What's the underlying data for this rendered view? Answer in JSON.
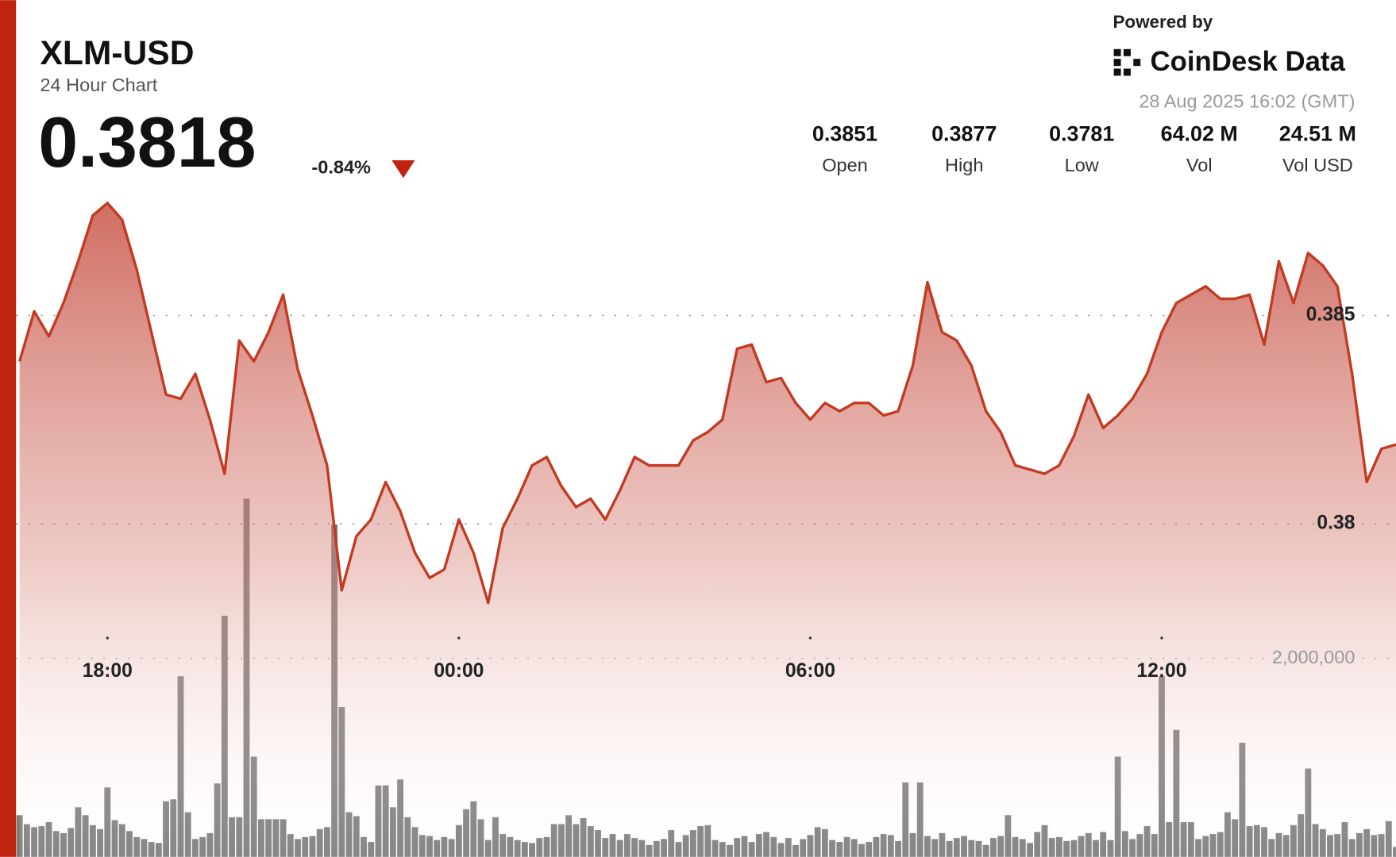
{
  "header": {
    "symbol": "XLM-USD",
    "subtitle": "24 Hour Chart",
    "price": "0.3818",
    "change": "-0.84%",
    "powered_by": "Powered by",
    "brand": "CoinDesk Data",
    "timestamp": "28 Aug 2025 16:02 (GMT)"
  },
  "stats": [
    {
      "value": "0.3851",
      "label": "Open"
    },
    {
      "value": "0.3877",
      "label": "High"
    },
    {
      "value": "0.3781",
      "label": "Low"
    },
    {
      "value": "64.02 M",
      "label": "Vol"
    },
    {
      "value": "24.51 M",
      "label": "Vol USD"
    }
  ],
  "chart_data": {
    "type": "line",
    "xlim": [
      0,
      94
    ],
    "xticks": [
      {
        "value": 6,
        "label": "18:00"
      },
      {
        "value": 30,
        "label": "00:00"
      },
      {
        "value": 54,
        "label": "06:00"
      },
      {
        "value": 78,
        "label": "12:00"
      }
    ],
    "ylim": [
      0.372,
      0.3883
    ],
    "yticks": [
      0.38,
      0.385
    ],
    "y2lim": [
      0,
      6840000
    ],
    "y2ticks": [
      {
        "value": 2000000,
        "label": "2,000,000"
      }
    ],
    "grid": true,
    "series": [
      {
        "type": "area",
        "color": "#c23a22",
        "values": [
          0.3839,
          0.3851,
          0.3845,
          0.3853,
          0.3863,
          0.3874,
          0.3877,
          0.3873,
          0.3861,
          0.3846,
          0.3831,
          0.383,
          0.3836,
          0.3825,
          0.3812,
          0.3844,
          0.3839,
          0.3846,
          0.3855,
          0.3837,
          0.3826,
          0.3814,
          0.3784,
          0.3797,
          0.3801,
          0.381,
          0.3803,
          0.3793,
          0.3787,
          0.3789,
          0.3801,
          0.3793,
          0.3781,
          0.3799,
          0.3806,
          0.3814,
          0.3816,
          0.3809,
          0.3804,
          0.3806,
          0.3801,
          0.3808,
          0.3816,
          0.3814,
          0.3814,
          0.3814,
          0.382,
          0.3822,
          0.3825,
          0.3842,
          0.3843,
          0.3834,
          0.3835,
          0.3829,
          0.3825,
          0.3829,
          0.3827,
          0.3829,
          0.3829,
          0.3826,
          0.3827,
          0.3838,
          0.3858,
          0.3846,
          0.3844,
          0.3838,
          0.3827,
          0.3822,
          0.3814,
          0.3813,
          0.3812,
          0.3814,
          0.3821,
          0.3831,
          0.3823,
          0.3826,
          0.383,
          0.3836,
          0.3846,
          0.3853,
          0.3855,
          0.3857,
          0.3854,
          0.3854,
          0.3855,
          0.3843,
          0.3863,
          0.3853,
          0.3865,
          0.3862,
          0.3857,
          0.3836,
          0.381,
          0.3818,
          0.3819
        ]
      },
      {
        "type": "bar",
        "axis": "y2",
        "color": "#6b6b6b",
        "values": [
          420000,
          330000,
          300000,
          310000,
          350000,
          260000,
          240000,
          290000,
          500000,
          420000,
          320000,
          280000,
          700000,
          370000,
          330000,
          260000,
          200000,
          180000,
          150000,
          140000,
          560000,
          580000,
          1820000,
          450000,
          180000,
          200000,
          240000,
          740000,
          2430000,
          400000,
          400000,
          3610000,
          1010000,
          380000,
          380000,
          380000,
          380000,
          230000,
          180000,
          200000,
          210000,
          280000,
          300000,
          3350000,
          1510000,
          450000,
          410000,
          200000,
          150000,
          720000,
          720000,
          500000,
          780000,
          400000,
          300000,
          220000,
          210000,
          170000,
          200000,
          180000,
          320000,
          480000,
          560000,
          380000,
          170000,
          400000,
          230000,
          200000,
          170000,
          150000,
          140000,
          190000,
          200000,
          330000,
          330000,
          420000,
          330000,
          390000,
          310000,
          270000,
          190000,
          230000,
          170000,
          230000,
          190000,
          170000,
          120000,
          160000,
          180000,
          270000,
          150000,
          220000,
          270000,
          310000,
          320000,
          170000,
          150000,
          120000,
          190000,
          210000,
          150000,
          230000,
          250000,
          200000,
          140000,
          190000,
          120000,
          180000,
          220000,
          300000,
          280000,
          170000,
          150000,
          200000,
          180000,
          130000,
          150000,
          200000,
          230000,
          220000,
          160000,
          750000,
          240000,
          750000,
          210000,
          180000,
          240000,
          160000,
          190000,
          210000,
          170000,
          160000,
          120000,
          190000,
          210000,
          420000,
          200000,
          180000,
          140000,
          250000,
          320000,
          190000,
          200000,
          160000,
          170000,
          210000,
          240000,
          170000,
          250000,
          170000,
          1010000,
          260000,
          180000,
          230000,
          310000,
          230000,
          1820000,
          350000,
          1280000,
          350000,
          350000,
          180000,
          210000,
          230000,
          250000,
          450000,
          380000,
          1150000,
          310000,
          320000,
          300000,
          180000,
          240000,
          220000,
          320000,
          430000,
          890000,
          330000,
          280000,
          220000,
          230000,
          350000,
          180000,
          240000,
          280000,
          220000,
          230000,
          360000,
          100000
        ]
      }
    ]
  }
}
